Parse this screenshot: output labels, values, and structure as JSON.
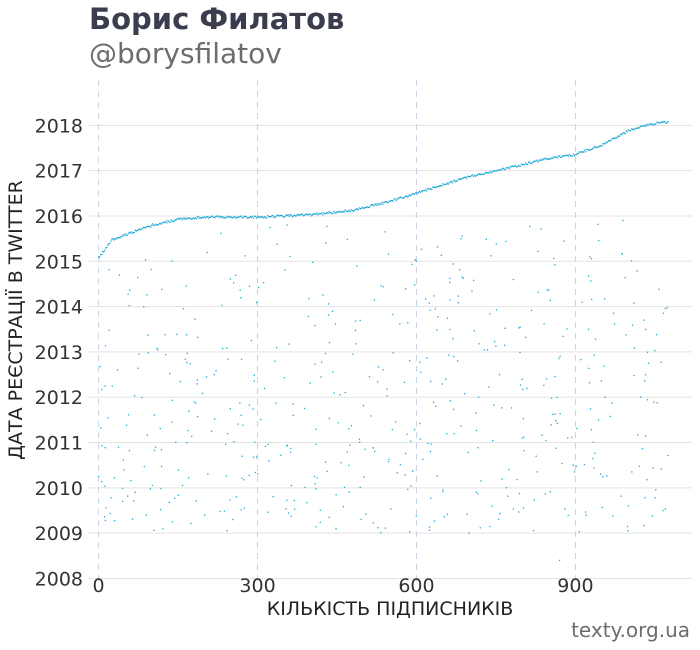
{
  "header": {
    "title": "Борис Филатов",
    "subtitle": "@borysfilatov"
  },
  "footer": {
    "source": "texty.org.ua"
  },
  "colors": {
    "points": "#1fa8d6",
    "hgrid": "#e3e3e3",
    "vgrid": "#c9d3e6"
  },
  "chart_data": {
    "type": "scatter",
    "xlabel": "КІЛЬКІСТЬ ПІДПИСНИКІВ",
    "ylabel": "ДАТА РЕЄСТРАЦІЇ В TWITTER",
    "xlim": [
      -20,
      1120
    ],
    "ylim": [
      2007.9,
      2019.0
    ],
    "xticks": [
      0,
      300,
      600,
      900
    ],
    "yticks": [
      2008,
      2009,
      2010,
      2011,
      2012,
      2013,
      2014,
      2015,
      2016,
      2017,
      2018
    ],
    "grid": "horizontal solid, vertical dashed",
    "x_range_of_points": [
      0,
      1075
    ],
    "frontier": [
      [
        0,
        2015.1
      ],
      [
        25,
        2015.5
      ],
      [
        60,
        2015.65
      ],
      [
        100,
        2015.82
      ],
      [
        150,
        2015.95
      ],
      [
        200,
        2016.0
      ],
      [
        300,
        2016.0
      ],
      [
        400,
        2016.05
      ],
      [
        480,
        2016.15
      ],
      [
        550,
        2016.35
      ],
      [
        620,
        2016.6
      ],
      [
        700,
        2016.9
      ],
      [
        780,
        2017.1
      ],
      [
        850,
        2017.3
      ],
      [
        900,
        2017.38
      ],
      [
        950,
        2017.6
      ],
      [
        1000,
        2017.9
      ],
      [
        1040,
        2018.05
      ],
      [
        1075,
        2018.1
      ]
    ],
    "n_frontier_points": 560,
    "n_scatter_points": 540,
    "scatter_bounds": {
      "year_min": 2009.0,
      "year_max": 2016.0
    },
    "outliers": [
      [
        448,
        2009.1
      ],
      [
        435,
        2009.35
      ],
      [
        870,
        2008.4
      ],
      [
        200,
        2009.4
      ],
      [
        90,
        2009.4
      ],
      [
        1000,
        2009.6
      ],
      [
        1065,
        2009.5
      ],
      [
        45,
        2009.7
      ],
      [
        260,
        2009.8
      ]
    ]
  }
}
